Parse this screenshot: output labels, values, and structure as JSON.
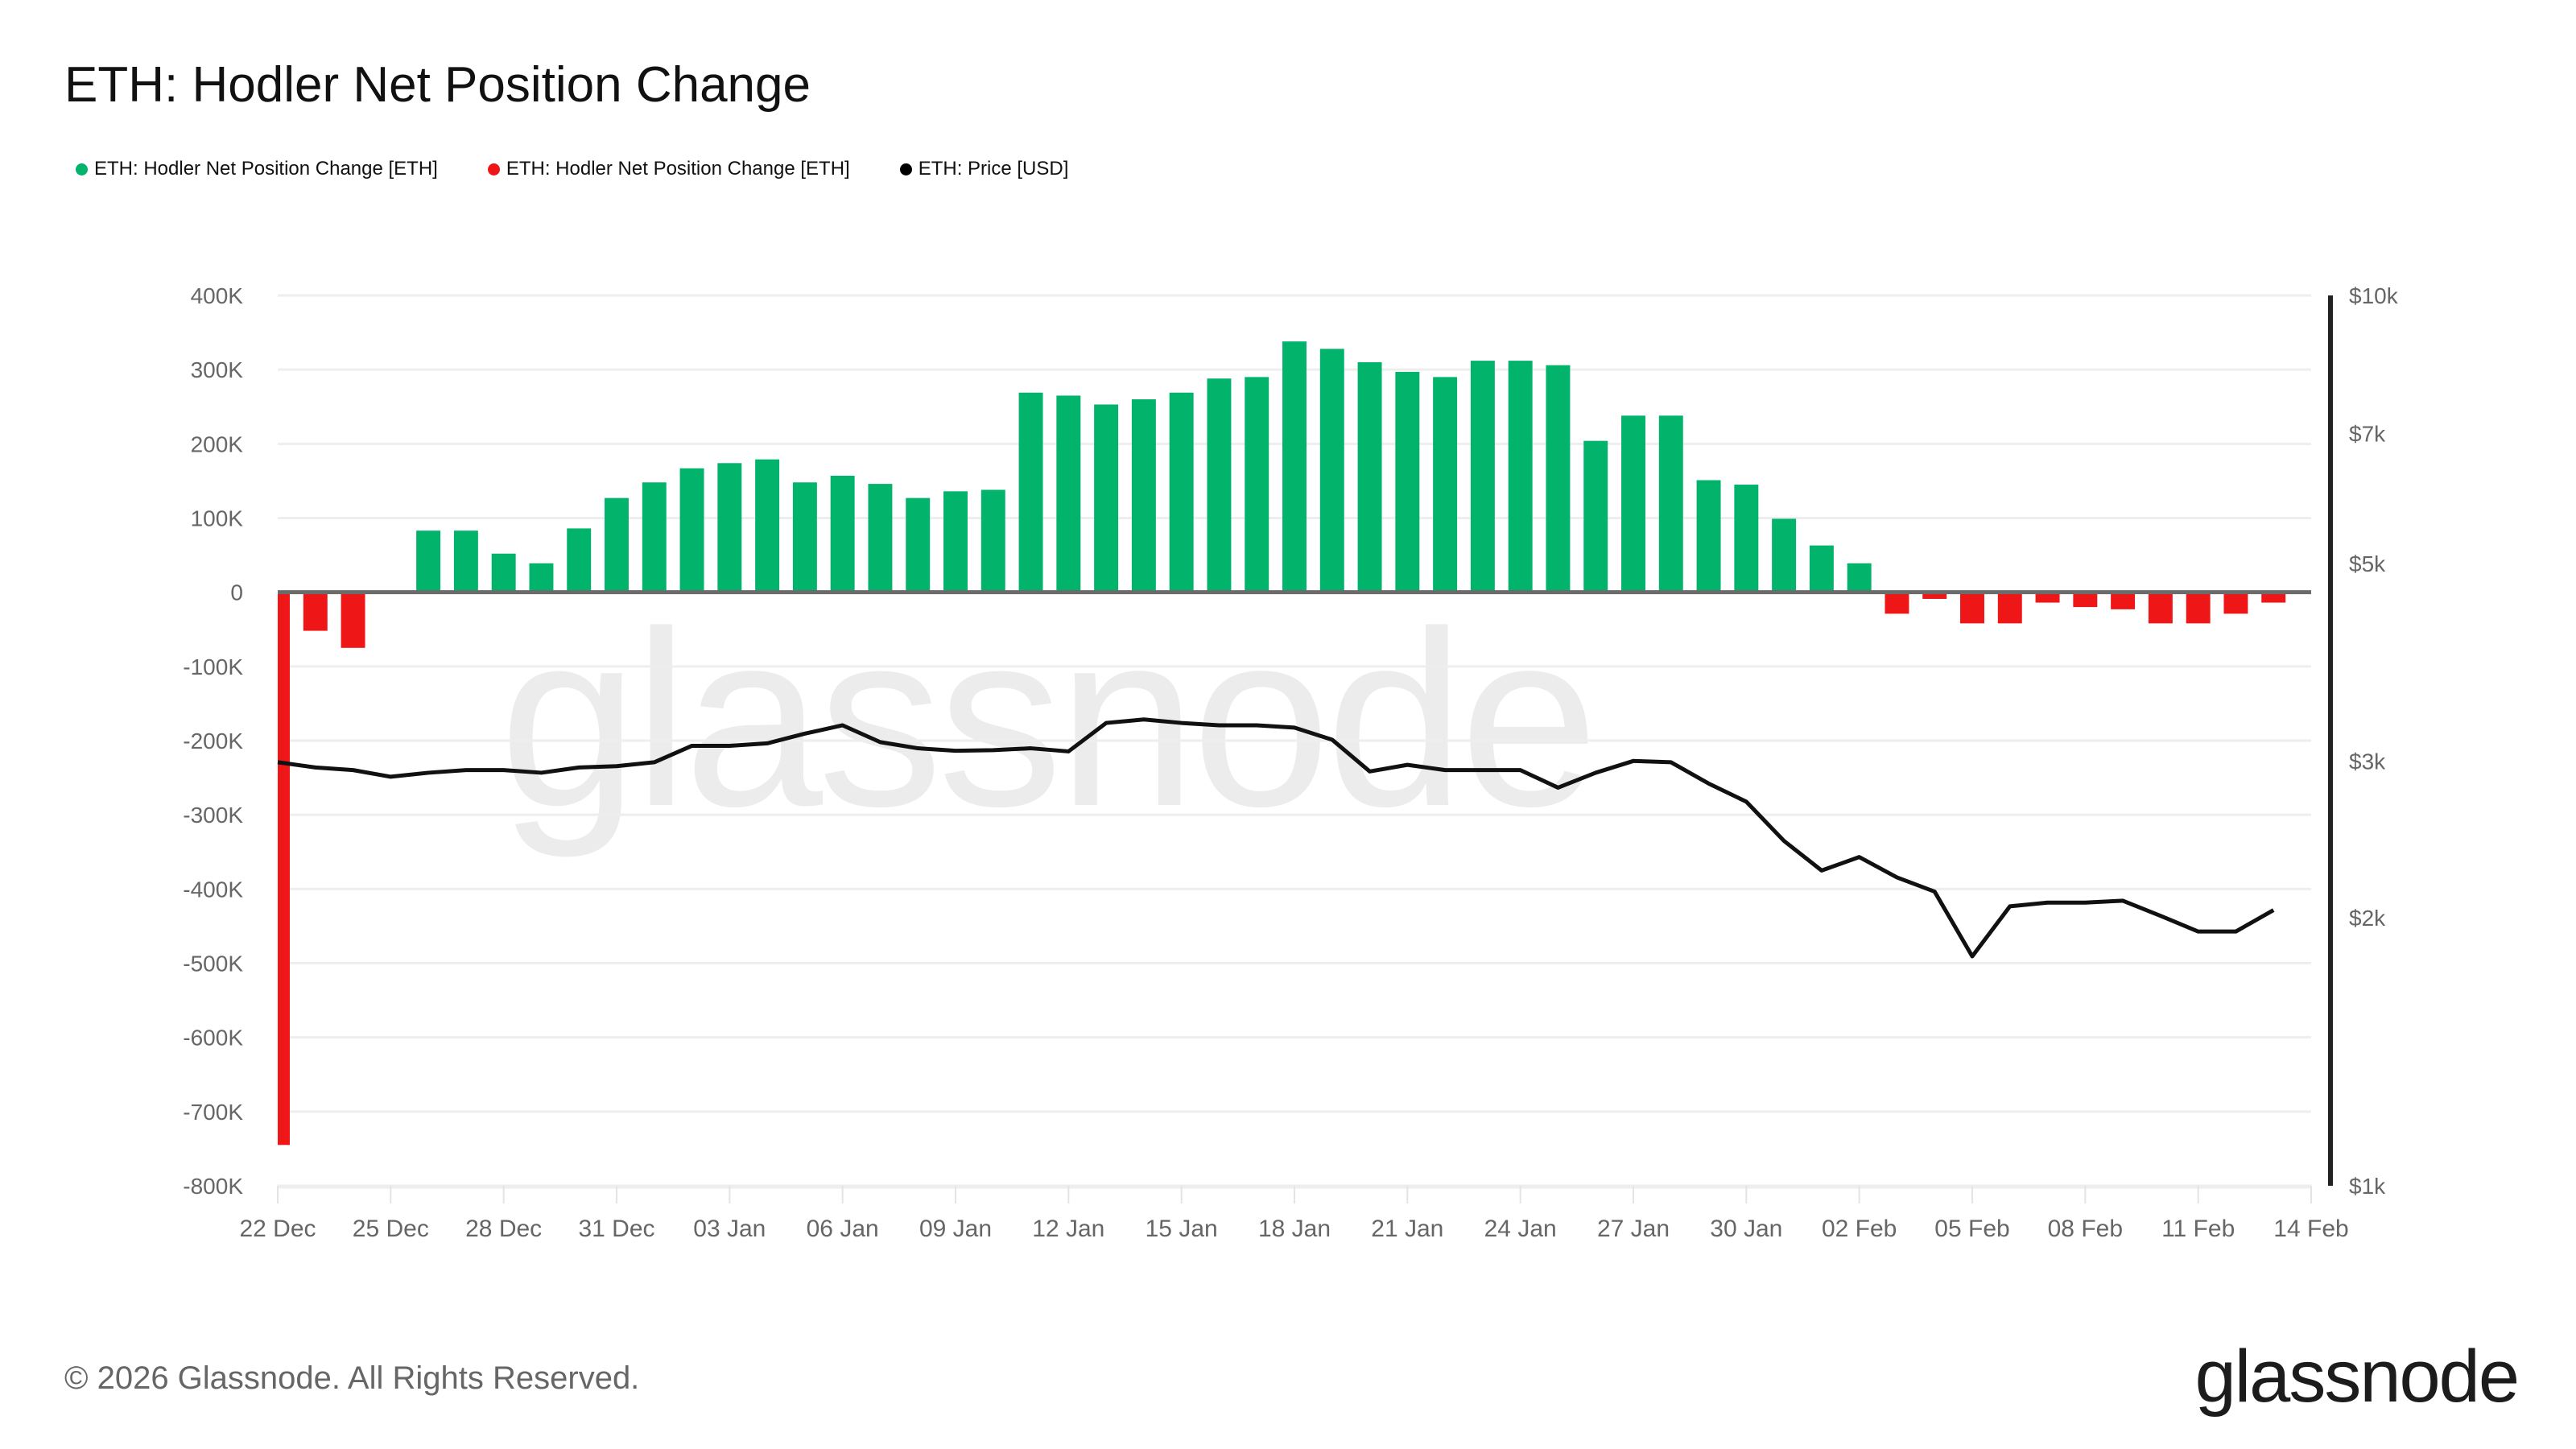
{
  "title": "ETH: Hodler Net Position Change",
  "legend": [
    {
      "label": "ETH: Hodler Net Position Change [ETH]",
      "color": "#02b36c"
    },
    {
      "label": "ETH: Hodler Net Position Change [ETH]",
      "color": "#ee1616"
    },
    {
      "label": "ETH: Price [USD]",
      "color": "#000000"
    }
  ],
  "footer": "© 2026 Glassnode. All Rights Reserved.",
  "logo": "glassnode",
  "watermark": "glassnode",
  "chart_data": {
    "type": "bar",
    "title": "ETH: Hodler Net Position Change",
    "x": [
      "2025-12-22",
      "2025-12-23",
      "2025-12-24",
      "2025-12-25",
      "2025-12-26",
      "2025-12-27",
      "2025-12-28",
      "2025-12-29",
      "2025-12-30",
      "2025-12-31",
      "2026-01-01",
      "2026-01-02",
      "2026-01-03",
      "2026-01-04",
      "2026-01-05",
      "2026-01-06",
      "2026-01-07",
      "2026-01-08",
      "2026-01-09",
      "2026-01-10",
      "2026-01-11",
      "2026-01-12",
      "2026-01-13",
      "2026-01-14",
      "2026-01-15",
      "2026-01-16",
      "2026-01-17",
      "2026-01-18",
      "2026-01-19",
      "2026-01-20",
      "2026-01-21",
      "2026-01-22",
      "2026-01-23",
      "2026-01-24",
      "2026-01-25",
      "2026-01-26",
      "2026-01-27",
      "2026-01-28",
      "2026-01-29",
      "2026-01-30",
      "2026-01-31",
      "2026-02-01",
      "2026-02-02",
      "2026-02-03",
      "2026-02-04",
      "2026-02-05",
      "2026-02-06",
      "2026-02-07",
      "2026-02-08",
      "2026-02-09",
      "2026-02-10",
      "2026-02-11",
      "2026-02-12",
      "2026-02-13"
    ],
    "series": [
      {
        "name": "ETH: Hodler Net Position Change [ETH]",
        "type": "bar",
        "axis": "left",
        "positive_color": "#02b36c",
        "negative_color": "#ee1616",
        "values": [
          -745000,
          -52000,
          -75000,
          -2000,
          83000,
          83000,
          52000,
          39000,
          86000,
          127000,
          148000,
          167000,
          174000,
          179000,
          148000,
          157000,
          146000,
          127000,
          136000,
          138000,
          269000,
          265000,
          253000,
          260000,
          269000,
          288000,
          290000,
          338000,
          328000,
          310000,
          297000,
          290000,
          312000,
          312000,
          306000,
          204000,
          238000,
          238000,
          151000,
          145000,
          99000,
          63000,
          39000,
          -29000,
          -9000,
          -42000,
          -42000,
          -14000,
          -20000,
          -23000,
          -42000,
          -42000,
          -29000,
          -14000
        ]
      },
      {
        "name": "ETH: Price [USD]",
        "type": "line",
        "axis": "right",
        "color": "#000000",
        "values": [
          2990,
          2950,
          2930,
          2880,
          2910,
          2930,
          2930,
          2910,
          2950,
          2960,
          2990,
          3120,
          3120,
          3140,
          3220,
          3290,
          3150,
          3100,
          3080,
          3085,
          3100,
          3075,
          3310,
          3340,
          3310,
          3290,
          3290,
          3270,
          3170,
          2920,
          2970,
          2930,
          2930,
          2930,
          2800,
          2910,
          3000,
          2990,
          2830,
          2700,
          2440,
          2260,
          2340,
          2220,
          2140,
          1810,
          2060,
          2080,
          2080,
          2090,
          2010,
          1930,
          1930,
          2040
        ]
      }
    ],
    "x_ticks": [
      "22 Dec",
      "25 Dec",
      "28 Dec",
      "31 Dec",
      "03 Jan",
      "06 Jan",
      "09 Jan",
      "12 Jan",
      "15 Jan",
      "18 Jan",
      "21 Jan",
      "24 Jan",
      "27 Jan",
      "30 Jan",
      "02 Feb",
      "05 Feb",
      "08 Feb",
      "11 Feb",
      "14 Feb"
    ],
    "x_range": [
      "2025-12-22",
      "2026-02-14"
    ],
    "y_left": {
      "ticks": [
        "400K",
        "300K",
        "200K",
        "100K",
        "0",
        "-100K",
        "-200K",
        "-300K",
        "-400K",
        "-500K",
        "-600K",
        "-700K",
        "-800K"
      ],
      "range": [
        -800000,
        400000
      ]
    },
    "y_right": {
      "ticks": [
        {
          "label": "$10k",
          "value": 10000
        },
        {
          "label": "$7k",
          "value": 7000
        },
        {
          "label": "$5k",
          "value": 5000
        },
        {
          "label": "$3k",
          "value": 3000
        },
        {
          "label": "$2k",
          "value": 2000
        },
        {
          "label": "$1k",
          "value": 1000
        }
      ],
      "range": [
        1000,
        10000
      ],
      "scale": "log"
    },
    "grid": true,
    "legend_position": "top-left"
  }
}
